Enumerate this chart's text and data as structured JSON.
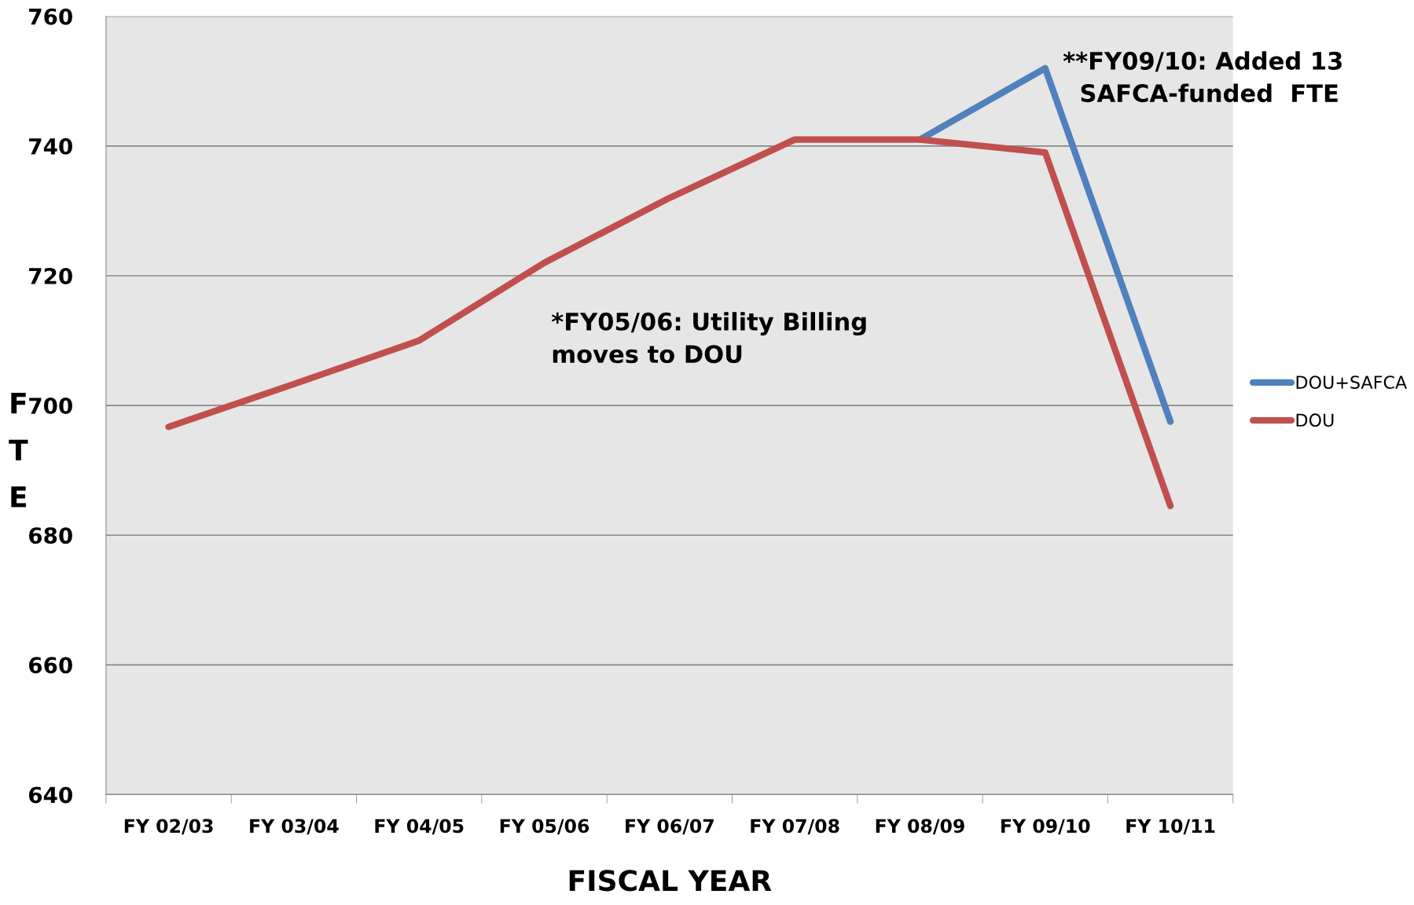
{
  "chart_data": {
    "type": "line",
    "xlabel": "FISCAL YEAR",
    "ylabel": "F\nT\nE",
    "categories": [
      "FY 02/03",
      "FY 03/04",
      "FY 04/05",
      "FY 05/06",
      "FY 06/07",
      "FY 07/08",
      "FY 08/09",
      "FY 09/10",
      "FY 10/11"
    ],
    "series": [
      {
        "name": "DOU+SAFCA",
        "color": "#4f81bd",
        "values": [
          null,
          null,
          null,
          null,
          null,
          null,
          741,
          752,
          697.5
        ]
      },
      {
        "name": "DOU",
        "color": "#c0504d",
        "values": [
          696.7,
          703.3,
          710,
          722,
          732,
          741,
          741,
          739,
          684.5
        ]
      }
    ],
    "ylim": [
      640,
      760
    ],
    "yticks": [
      640,
      660,
      680,
      700,
      720,
      740,
      760
    ],
    "grid": "y",
    "legend": "right",
    "marker": "none",
    "line_style": "solid",
    "annotations": [
      "*FY05/06: Utility Billing\nmoves to DOU",
      "**FY09/10: Added 13\n  SAFCA-funded  FTE"
    ]
  }
}
